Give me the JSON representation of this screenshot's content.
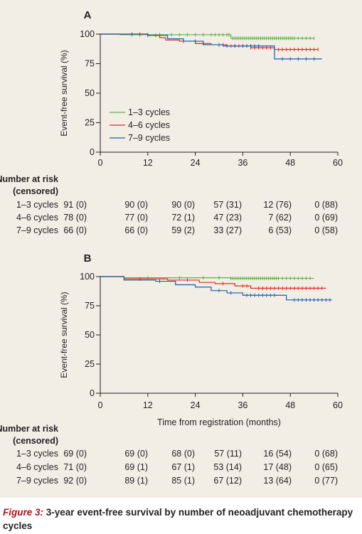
{
  "caption": {
    "label": "Figure 3:",
    "text": "3-year event-free survival by number of neoadjuvant chemotherapy cycles"
  },
  "colors": {
    "series_1_3": "#5fae45",
    "series_4_6": "#e02a26",
    "series_7_9": "#1d5fa8",
    "axis": "#231f20",
    "figure_background": "#f2eee6"
  },
  "chart_data": [
    {
      "type": "line",
      "panel": "A",
      "ylabel": "Event-free survival (%)",
      "xlabel": "",
      "xlim": [
        0,
        60
      ],
      "ylim": [
        0,
        100
      ],
      "xticks": [
        0,
        12,
        24,
        36,
        48,
        60
      ],
      "yticks": [
        0,
        25,
        50,
        75,
        100
      ],
      "grid": false,
      "legend": "center-left",
      "series": [
        {
          "name": "1–3 cycles",
          "color_key": "series_1_3",
          "steps": [
            [
              0,
              100
            ],
            [
              5,
              99.5
            ],
            [
              33,
              96.5
            ],
            [
              54,
              96.5
            ]
          ],
          "censors": [
            8,
            10,
            12,
            15,
            18,
            20,
            22,
            24,
            26,
            28,
            29,
            30,
            31,
            32,
            32.5,
            33.5,
            34,
            34.5,
            35,
            35.5,
            36,
            36.5,
            37,
            37.5,
            38,
            38.5,
            39,
            39.5,
            40,
            40.5,
            41,
            41.5,
            42,
            42.5,
            43,
            43.5,
            44,
            44.5,
            45,
            45.5,
            46,
            46.5,
            47,
            47.5,
            48,
            48.5,
            49,
            50,
            51,
            52,
            53,
            54
          ]
        },
        {
          "name": "4–6 cycles",
          "color_key": "series_4_6",
          "steps": [
            [
              0,
              100
            ],
            [
              12,
              99
            ],
            [
              15,
              97
            ],
            [
              16.5,
              95
            ],
            [
              20,
              94
            ],
            [
              24,
              92
            ],
            [
              28,
              91
            ],
            [
              32,
              90
            ],
            [
              38,
              88.5
            ],
            [
              44,
              87
            ],
            [
              55,
              87
            ]
          ],
          "censors": [
            10,
            14,
            21,
            26,
            31,
            33,
            34,
            35,
            36,
            37,
            38,
            39,
            40,
            41,
            42,
            43,
            44,
            45,
            46,
            47,
            48,
            49,
            50,
            51,
            52,
            53,
            54,
            55
          ]
        },
        {
          "name": "7–9 cycles",
          "color_key": "series_7_9",
          "steps": [
            [
              0,
              100
            ],
            [
              12,
              99
            ],
            [
              17,
              96
            ],
            [
              21,
              94
            ],
            [
              26,
              91
            ],
            [
              31,
              90
            ],
            [
              35,
              90
            ],
            [
              41,
              90
            ],
            [
              44,
              79
            ],
            [
              56,
              79
            ]
          ],
          "censors": [
            8,
            12,
            24,
            30,
            32,
            34,
            36,
            37,
            38,
            39,
            40,
            46,
            48,
            50,
            52,
            54
          ]
        }
      ],
      "risk_table": {
        "title_line1": "Number at risk",
        "title_line2": "(censored)",
        "rows": [
          {
            "label": "1–3 cycles",
            "values": [
              "91 (0)",
              "90 (0)",
              "90 (0)",
              "57 (31)",
              "12 (76)",
              "0 (88)"
            ]
          },
          {
            "label": "4–6 cycles",
            "values": [
              "78 (0)",
              "77 (0)",
              "72 (1)",
              "47 (23)",
              "7 (62)",
              "0 (69)"
            ]
          },
          {
            "label": "7–9 cycles",
            "values": [
              "66 (0)",
              "66 (0)",
              "59 (2)",
              "33 (27)",
              "6 (53)",
              "0 (58)"
            ]
          }
        ]
      }
    },
    {
      "type": "line",
      "panel": "B",
      "ylabel": "Event-free survival (%)",
      "xlabel": "Time from registration (months)",
      "xlim": [
        0,
        60
      ],
      "ylim": [
        0,
        100
      ],
      "xticks": [
        0,
        12,
        24,
        36,
        48,
        60
      ],
      "yticks": [
        0,
        25,
        50,
        75,
        100
      ],
      "grid": false,
      "legend": "none",
      "series": [
        {
          "name": "1–3 cycles",
          "color_key": "series_1_3",
          "steps": [
            [
              0,
              100
            ],
            [
              6,
              99
            ],
            [
              33,
              98.5
            ],
            [
              54,
              98.5
            ]
          ],
          "censors": [
            12,
            20,
            26,
            30,
            33,
            33.5,
            34,
            34.5,
            35,
            35.5,
            36,
            36.5,
            37,
            37.5,
            38,
            38.5,
            39,
            39.5,
            40,
            40.5,
            41,
            41.5,
            42,
            42.5,
            43,
            43.5,
            44,
            44.5,
            45,
            46,
            47,
            48,
            49,
            50,
            51,
            52,
            53
          ]
        },
        {
          "name": "4–6 cycles",
          "color_key": "series_4_6",
          "steps": [
            [
              0,
              100
            ],
            [
              6,
              98
            ],
            [
              17,
              97
            ],
            [
              25,
              95
            ],
            [
              29,
              94
            ],
            [
              34,
              92
            ],
            [
              38,
              90
            ],
            [
              57,
              90
            ]
          ],
          "censors": [
            10,
            22,
            31,
            36,
            37,
            40,
            41,
            42,
            43,
            44,
            45,
            46,
            47,
            48,
            49,
            50,
            51,
            52,
            53,
            54,
            55,
            56
          ]
        },
        {
          "name": "7–9 cycles",
          "color_key": "series_7_9",
          "steps": [
            [
              0,
              100
            ],
            [
              6,
              97
            ],
            [
              14,
              96
            ],
            [
              19,
              93
            ],
            [
              24,
              91
            ],
            [
              28,
              88
            ],
            [
              32,
              86
            ],
            [
              36,
              84
            ],
            [
              47,
              80
            ],
            [
              58.5,
              80
            ]
          ],
          "censors": [
            15,
            30,
            33,
            37,
            38,
            39,
            40,
            41,
            42,
            43,
            44,
            49,
            50,
            51,
            52,
            53,
            54,
            55,
            56,
            57,
            58
          ]
        }
      ],
      "risk_table": {
        "title_line1": "Number at risk",
        "title_line2": "(censored)",
        "rows": [
          {
            "label": "1–3 cycles",
            "values": [
              "69 (0)",
              "69 (0)",
              "68 (0)",
              "57 (11)",
              "16 (54)",
              "0 (68)"
            ]
          },
          {
            "label": "4–6 cycles",
            "values": [
              "71 (0)",
              "69 (1)",
              "67 (1)",
              "53 (14)",
              "17 (48)",
              "0 (65)"
            ]
          },
          {
            "label": "7–9 cycles",
            "values": [
              "92 (0)",
              "89 (1)",
              "85 (1)",
              "67 (12)",
              "13 (64)",
              "0 (77)"
            ]
          }
        ]
      }
    }
  ]
}
